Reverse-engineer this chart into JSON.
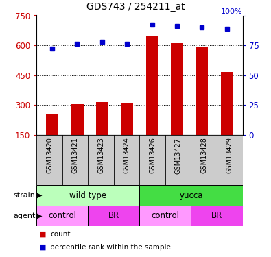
{
  "title": "GDS743 / 254211_at",
  "samples": [
    "GSM13420",
    "GSM13421",
    "GSM13423",
    "GSM13424",
    "GSM13426",
    "GSM13427",
    "GSM13428",
    "GSM13429"
  ],
  "counts": [
    255,
    305,
    315,
    308,
    645,
    610,
    595,
    465
  ],
  "percentiles": [
    72,
    76,
    78,
    76,
    92,
    91,
    90,
    89
  ],
  "ylim_left": [
    150,
    750
  ],
  "ylim_right": [
    0,
    100
  ],
  "yticks_left": [
    150,
    300,
    450,
    600,
    750
  ],
  "yticks_right": [
    0,
    25,
    50,
    75,
    100
  ],
  "bar_color": "#CC0000",
  "dot_color": "#0000CC",
  "strain_groups": [
    {
      "label": "wild type",
      "start": 0,
      "end": 4,
      "color": "#BBFFBB"
    },
    {
      "label": "yucca",
      "start": 4,
      "end": 8,
      "color": "#44DD44"
    }
  ],
  "agent_groups": [
    {
      "label": "control",
      "start": 0,
      "end": 2,
      "color": "#FF99FF"
    },
    {
      "label": "BR",
      "start": 2,
      "end": 4,
      "color": "#EE44EE"
    },
    {
      "label": "control",
      "start": 4,
      "end": 6,
      "color": "#FF99FF"
    },
    {
      "label": "BR",
      "start": 6,
      "end": 8,
      "color": "#EE44EE"
    }
  ],
  "bar_width": 0.5,
  "grid_color": "black",
  "background_color": "#ffffff",
  "plot_bg": "#ffffff",
  "left_tick_color": "#CC0000",
  "right_tick_color": "#0000CC",
  "legend_count_color": "#CC0000",
  "legend_pct_color": "#0000CC",
  "sample_bg_color": "#CCCCCC",
  "sample_border_color": "#888888"
}
